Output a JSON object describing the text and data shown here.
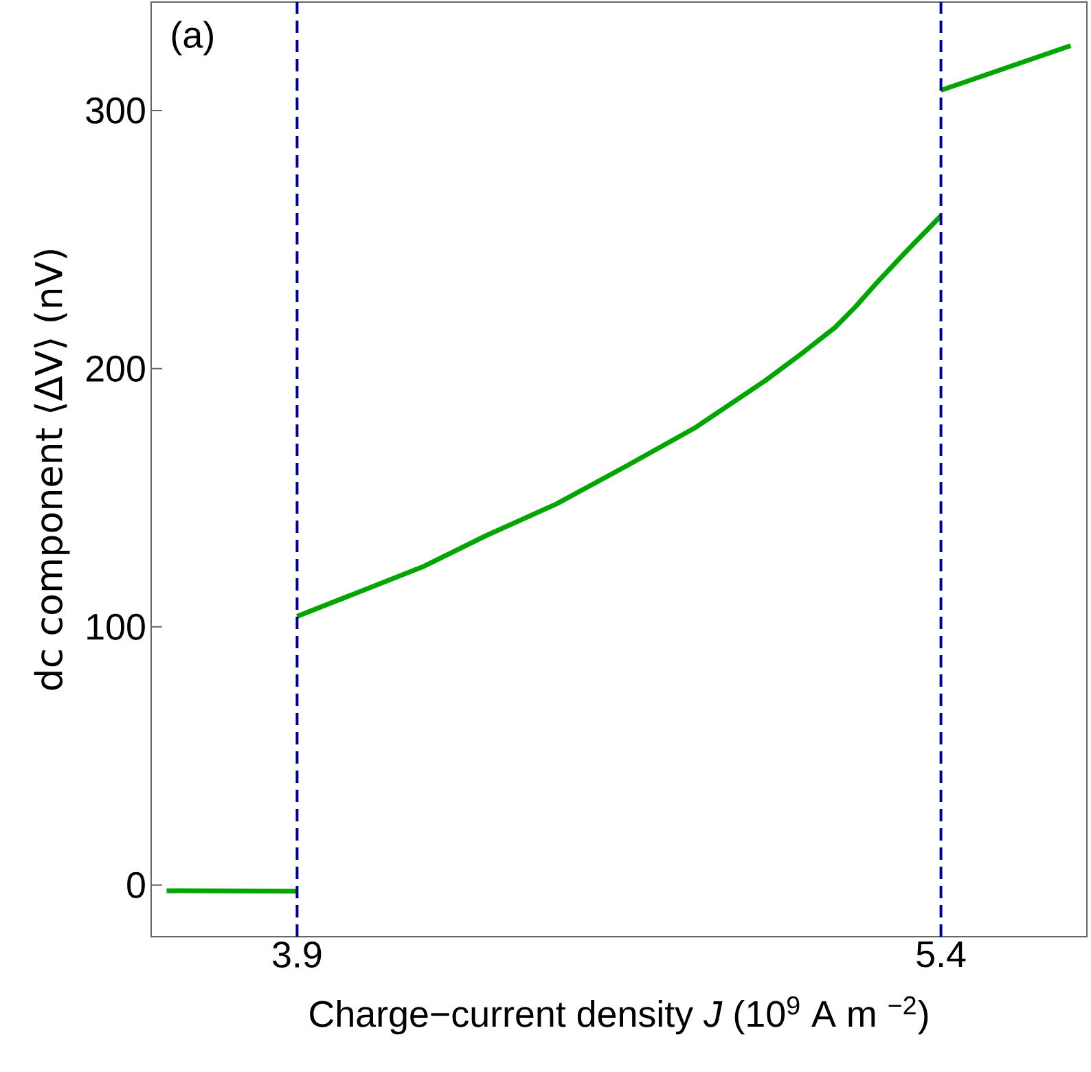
{
  "chart_data": {
    "type": "line",
    "xlabel": "Charge−current  density  *J*  (10$^{9}$ A m $^{−2}$)",
    "ylabel": "dc  component  ⟨ΔV⟩  (nV)",
    "annotations": [
      "(a)"
    ],
    "xlim": [
      3.56,
      5.74
    ],
    "ylim": [
      -20,
      342
    ],
    "xticks": [
      3.9,
      5.4
    ],
    "yticks": [
      0,
      100,
      200,
      300
    ],
    "series": [
      {
        "color": "#00a500",
        "x": [
          3.596,
          3.9
        ],
        "values": [
          -2.2,
          -2.4
        ]
      },
      {
        "color": "#00a500",
        "x": [
          3.9,
          4.192,
          4.341,
          4.504,
          4.666,
          4.829,
          4.991,
          5.072,
          5.153,
          5.201,
          5.25,
          5.316,
          5.4
        ],
        "values": [
          104.1,
          123.2,
          135.4,
          147.6,
          162.2,
          177.3,
          195.4,
          205.4,
          215.9,
          224.0,
          233.2,
          244.9,
          259.2
        ]
      },
      {
        "color": "#00a500",
        "x": [
          5.4,
          5.702
        ],
        "values": [
          307.8,
          325.1
        ]
      }
    ],
    "ref_lines": [
      {
        "axis": "x",
        "value": 3.9,
        "color": "#0000a0",
        "line_style": "dashed"
      },
      {
        "axis": "x",
        "value": 5.4,
        "color": "#0000a0",
        "line_style": "dashed"
      }
    ],
    "grid": false
  }
}
